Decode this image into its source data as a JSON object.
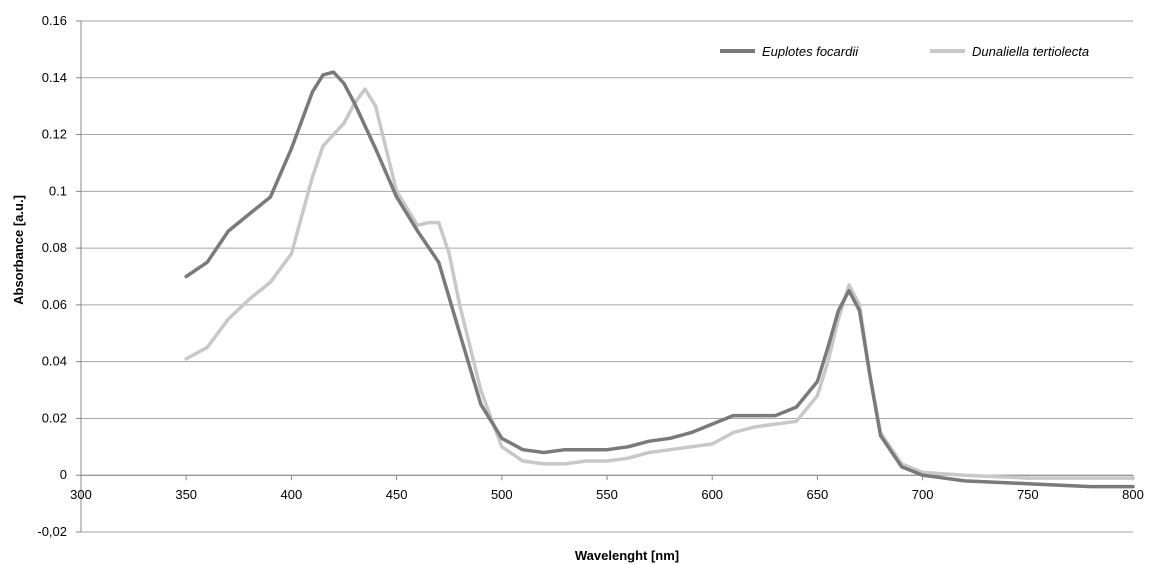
{
  "chart_data": {
    "type": "line",
    "title": "",
    "xlabel": "Wavelenght [nm]",
    "ylabel": "Absorbance [a.u.]",
    "xlim": [
      300,
      800
    ],
    "ylim": [
      -0.02,
      0.16
    ],
    "x_ticks": [
      300,
      350,
      400,
      450,
      500,
      550,
      600,
      650,
      700,
      750,
      800
    ],
    "x_tick_labels": [
      "300",
      "350",
      "400",
      "450",
      "500",
      "550",
      "600",
      "650",
      "700",
      "750",
      "800"
    ],
    "y_ticks": [
      -0.02,
      0,
      0.02,
      0.04,
      0.06,
      0.08,
      0.1,
      0.12,
      0.14,
      0.16
    ],
    "y_tick_labels": [
      "-0,02",
      "0",
      "0.02",
      "0.04",
      "0.06",
      "0.08",
      "0.1",
      "0.12",
      "0.14",
      "0.16"
    ],
    "grid": "horizontal",
    "legend_position": "top-right",
    "series": [
      {
        "name": "Euplotes focardii",
        "color": "#7a7a7a",
        "x": [
          350,
          360,
          370,
          380,
          390,
          400,
          410,
          415,
          420,
          425,
          430,
          440,
          450,
          460,
          470,
          480,
          490,
          500,
          510,
          520,
          530,
          540,
          550,
          560,
          570,
          580,
          590,
          600,
          610,
          620,
          630,
          640,
          650,
          655,
          660,
          665,
          670,
          675,
          680,
          690,
          700,
          720,
          750,
          780,
          800
        ],
        "y": [
          0.07,
          0.075,
          0.086,
          0.092,
          0.098,
          0.115,
          0.135,
          0.141,
          0.142,
          0.138,
          0.131,
          0.115,
          0.098,
          0.086,
          0.075,
          0.05,
          0.025,
          0.013,
          0.009,
          0.008,
          0.009,
          0.009,
          0.009,
          0.01,
          0.012,
          0.013,
          0.015,
          0.018,
          0.021,
          0.021,
          0.021,
          0.024,
          0.033,
          0.045,
          0.058,
          0.065,
          0.058,
          0.035,
          0.014,
          0.003,
          0.0,
          -0.002,
          -0.003,
          -0.004,
          -0.004
        ]
      },
      {
        "name": "Dunaliella tertiolecta",
        "color": "#c8c8c8",
        "x": [
          350,
          360,
          370,
          380,
          390,
          400,
          410,
          415,
          420,
          425,
          430,
          435,
          440,
          450,
          460,
          465,
          470,
          475,
          480,
          490,
          500,
          510,
          520,
          530,
          540,
          550,
          560,
          570,
          580,
          590,
          600,
          610,
          620,
          630,
          640,
          650,
          655,
          660,
          665,
          670,
          675,
          680,
          690,
          700,
          720,
          750,
          780,
          800
        ],
        "y": [
          0.041,
          0.045,
          0.055,
          0.062,
          0.068,
          0.078,
          0.105,
          0.116,
          0.12,
          0.124,
          0.131,
          0.136,
          0.13,
          0.1,
          0.088,
          0.089,
          0.089,
          0.078,
          0.06,
          0.03,
          0.01,
          0.005,
          0.004,
          0.004,
          0.005,
          0.005,
          0.006,
          0.008,
          0.009,
          0.01,
          0.011,
          0.015,
          0.017,
          0.018,
          0.019,
          0.028,
          0.04,
          0.055,
          0.067,
          0.06,
          0.035,
          0.015,
          0.004,
          0.001,
          0.0,
          -0.001,
          -0.001,
          -0.001
        ]
      }
    ]
  }
}
